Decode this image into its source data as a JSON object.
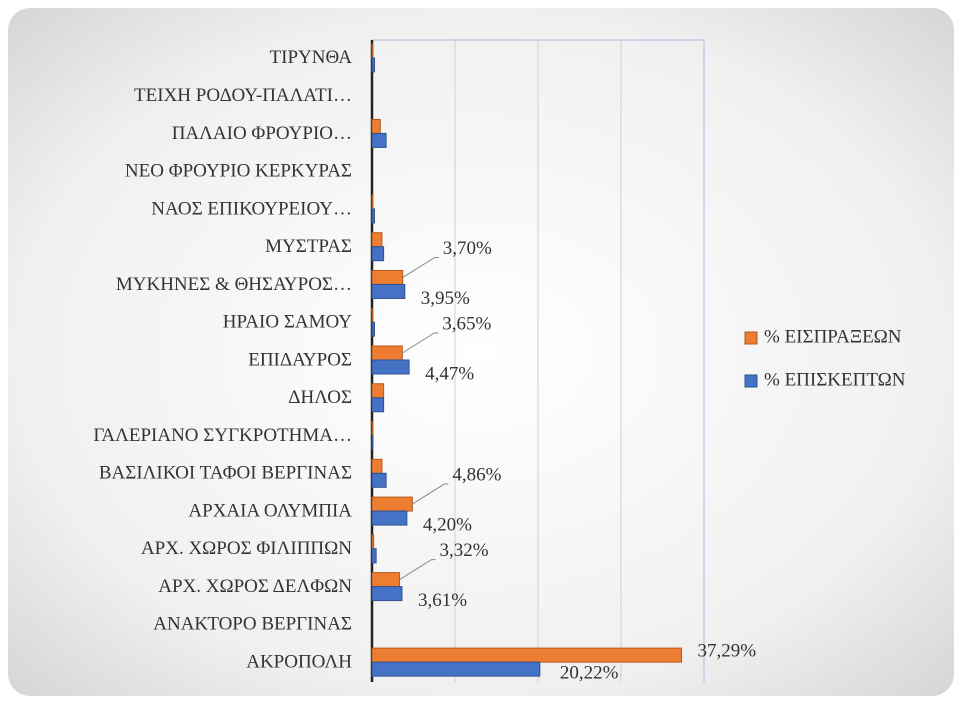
{
  "chart_data": {
    "type": "barh",
    "categories": [
      "ΑΚΡΟΠΟΛΗ",
      "ΑΝΑΚΤΟΡΟ ΒΕΡΓΙΝΑΣ",
      "ΑΡΧ. ΧΩΡΟΣ ΔΕΛΦΩΝ",
      "ΑΡΧ. ΧΩΡΟΣ ΦΙΛΙΠΠΩΝ",
      "ΑΡΧΑΙΑ ΟΛΥΜΠΙΑ",
      "ΒΑΣΙΛΙΚΟΙ ΤΑΦΟΙ ΒΕΡΓΙΝΑΣ",
      "ΓΑΛΕΡΙΑΝΟ ΣΥΓΚΡΟΤΗΜΑ…",
      "ΔΗΛΟΣ",
      "ΕΠΙΔΑΥΡΟΣ",
      "ΗΡΑΙΟ ΣΑΜΟΥ",
      "ΜΥΚΗΝΕΣ & ΘΗΣΑΥΡΟΣ…",
      "ΜΥΣΤΡΑΣ",
      "ΝΑΟΣ ΕΠΙΚΟΥΡΕΙΟΥ…",
      "ΝΕΟ ΦΡΟΥΡΙΟ ΚΕΡΚΥΡΑΣ",
      "ΠΑΛΑΙΟ ΦΡΟΥΡΙΟ…",
      "ΤΕΙΧΗ ΡΟΔΟΥ-ΠΑΛΑΤΙ…",
      "ΤΙΡΥΝΘΑ"
    ],
    "series": [
      {
        "name": "% ΕΙΣΠΡΑΞΕΩΝ",
        "color": "#ed7d31",
        "values": [
          37.29,
          0,
          3.32,
          0.2,
          4.86,
          1.2,
          0.1,
          1.4,
          3.65,
          0.1,
          3.7,
          1.2,
          0.1,
          0,
          1.0,
          0,
          0.1
        ],
        "value_labels": [
          "37,29%",
          null,
          "3,32%",
          null,
          "4,86%",
          null,
          null,
          null,
          "3,65%",
          null,
          "3,70%",
          null,
          null,
          null,
          null,
          null,
          null
        ]
      },
      {
        "name": "% ΕΠΙΣΚΕΠΤΩΝ",
        "color": "#4472c4",
        "values": [
          20.22,
          0,
          3.61,
          0.5,
          4.2,
          1.7,
          0.1,
          1.4,
          4.47,
          0.3,
          3.95,
          1.4,
          0.3,
          0,
          1.7,
          0,
          0.3
        ],
        "value_labels": [
          "20,22%",
          null,
          "3,61%",
          null,
          "4,20%",
          null,
          null,
          null,
          "4,47%",
          null,
          "3,95%",
          null,
          null,
          null,
          null,
          null,
          null
        ]
      }
    ],
    "xlim": [
      0,
      40
    ],
    "xticks": [
      0,
      10,
      20,
      30,
      40
    ],
    "grid": true,
    "legend": "right"
  }
}
